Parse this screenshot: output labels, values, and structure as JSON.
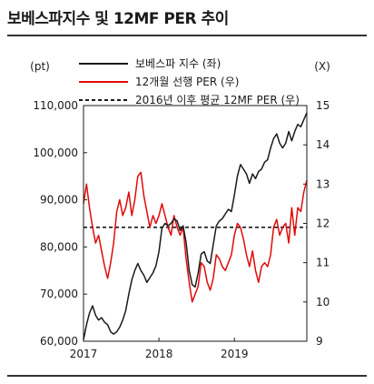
{
  "header": {
    "title": "보베스파지수 및 12MF PER 추이"
  },
  "chart_data": {
    "type": "line",
    "left_unit": "(pt)",
    "right_unit": "(X)",
    "y_left": {
      "min": 60000,
      "max": 110000,
      "ticks": [
        60000,
        70000,
        80000,
        90000,
        100000,
        110000
      ],
      "tick_labels": [
        "60,000",
        "70,000",
        "80,000",
        "90,000",
        "100,000",
        "110,000"
      ]
    },
    "y_right": {
      "min": 9,
      "max": 15,
      "ticks": [
        9,
        10,
        11,
        12,
        13,
        14,
        15
      ],
      "tick_labels": [
        "9",
        "10",
        "11",
        "12",
        "13",
        "14",
        "15"
      ]
    },
    "x_axis": {
      "min": 2017.0,
      "max": 2019.96,
      "ticks": [
        2017,
        2018,
        2019
      ],
      "tick_labels": [
        "2017",
        "2018",
        "2019"
      ]
    },
    "series": [
      {
        "name": "보베스파 지수 (좌)",
        "axis": "left",
        "color": "#1a1a1a",
        "style": "solid",
        "x": [
          2017.0,
          2017.04,
          2017.08,
          2017.12,
          2017.16,
          2017.2,
          2017.24,
          2017.28,
          2017.32,
          2017.36,
          2017.4,
          2017.44,
          2017.48,
          2017.52,
          2017.56,
          2017.6,
          2017.64,
          2017.68,
          2017.72,
          2017.76,
          2017.8,
          2017.84,
          2017.88,
          2017.92,
          2017.96,
          2018.0,
          2018.04,
          2018.08,
          2018.12,
          2018.16,
          2018.2,
          2018.24,
          2018.28,
          2018.32,
          2018.36,
          2018.4,
          2018.44,
          2018.48,
          2018.52,
          2018.56,
          2018.6,
          2018.64,
          2018.68,
          2018.72,
          2018.76,
          2018.8,
          2018.84,
          2018.88,
          2018.92,
          2018.96,
          2019.0,
          2019.04,
          2019.08,
          2019.12,
          2019.16,
          2019.2,
          2019.24,
          2019.28,
          2019.32,
          2019.36,
          2019.4,
          2019.44,
          2019.48,
          2019.52,
          2019.56,
          2019.6,
          2019.64,
          2019.68,
          2019.72,
          2019.76,
          2019.8,
          2019.84,
          2019.88,
          2019.92,
          2019.96
        ],
        "values": [
          60300,
          63500,
          66000,
          67500,
          65500,
          64500,
          65000,
          64000,
          63500,
          62000,
          61500,
          62000,
          63000,
          64500,
          66500,
          70000,
          73000,
          75000,
          76500,
          75000,
          74000,
          72500,
          73500,
          74500,
          76000,
          79000,
          84000,
          85000,
          84500,
          85000,
          86000,
          85500,
          83500,
          84500,
          81000,
          75000,
          72000,
          71500,
          74500,
          78500,
          79000,
          77000,
          76500,
          80500,
          84500,
          85500,
          86000,
          87000,
          88000,
          87500,
          91000,
          95000,
          97500,
          96500,
          95500,
          93500,
          95500,
          94500,
          96000,
          96500,
          98000,
          98500,
          101000,
          103000,
          104000,
          102000,
          101000,
          102000,
          104500,
          102500,
          104500,
          106000,
          105500,
          107000,
          108500
        ]
      },
      {
        "name": "12개월 선행 PER (우)",
        "axis": "right",
        "color": "#e10a0a",
        "style": "solid",
        "x": [
          2017.0,
          2017.04,
          2017.08,
          2017.12,
          2017.16,
          2017.2,
          2017.24,
          2017.28,
          2017.32,
          2017.36,
          2017.4,
          2017.44,
          2017.48,
          2017.52,
          2017.56,
          2017.6,
          2017.64,
          2017.68,
          2017.72,
          2017.76,
          2017.8,
          2017.84,
          2017.88,
          2017.92,
          2017.96,
          2018.0,
          2018.04,
          2018.08,
          2018.12,
          2018.16,
          2018.2,
          2018.24,
          2018.28,
          2018.32,
          2018.36,
          2018.4,
          2018.44,
          2018.48,
          2018.52,
          2018.56,
          2018.6,
          2018.64,
          2018.68,
          2018.72,
          2018.76,
          2018.8,
          2018.84,
          2018.88,
          2018.92,
          2018.96,
          2019.0,
          2019.04,
          2019.08,
          2019.12,
          2019.16,
          2019.2,
          2019.24,
          2019.28,
          2019.32,
          2019.36,
          2019.4,
          2019.44,
          2019.48,
          2019.52,
          2019.56,
          2019.6,
          2019.64,
          2019.68,
          2019.72,
          2019.76,
          2019.8,
          2019.84,
          2019.88,
          2019.92,
          2019.96
        ],
        "values": [
          12.5,
          13.0,
          12.4,
          11.9,
          11.5,
          11.7,
          11.3,
          10.9,
          10.6,
          11.0,
          11.5,
          12.3,
          12.6,
          12.2,
          12.4,
          12.8,
          12.2,
          12.6,
          13.2,
          13.3,
          12.7,
          12.3,
          11.9,
          12.2,
          12.0,
          12.2,
          12.5,
          12.2,
          11.9,
          11.7,
          12.2,
          11.9,
          11.7,
          11.9,
          11.1,
          10.5,
          10.0,
          10.2,
          10.4,
          11.0,
          10.9,
          10.5,
          10.3,
          10.6,
          11.2,
          11.1,
          10.9,
          10.8,
          11.0,
          11.2,
          11.7,
          12.0,
          11.9,
          11.6,
          11.2,
          10.9,
          11.3,
          10.8,
          10.5,
          10.9,
          11.0,
          10.9,
          11.2,
          11.9,
          12.1,
          11.7,
          11.9,
          12.0,
          11.5,
          12.4,
          11.7,
          12.4,
          12.3,
          12.8,
          13.1
        ]
      },
      {
        "name": "2016년 이후 평균 12MF PER (우)",
        "axis": "right",
        "color": "#1a1a1a",
        "style": "dashed",
        "x": [
          2017.0,
          2019.96
        ],
        "values": [
          11.9,
          11.9
        ]
      }
    ]
  }
}
